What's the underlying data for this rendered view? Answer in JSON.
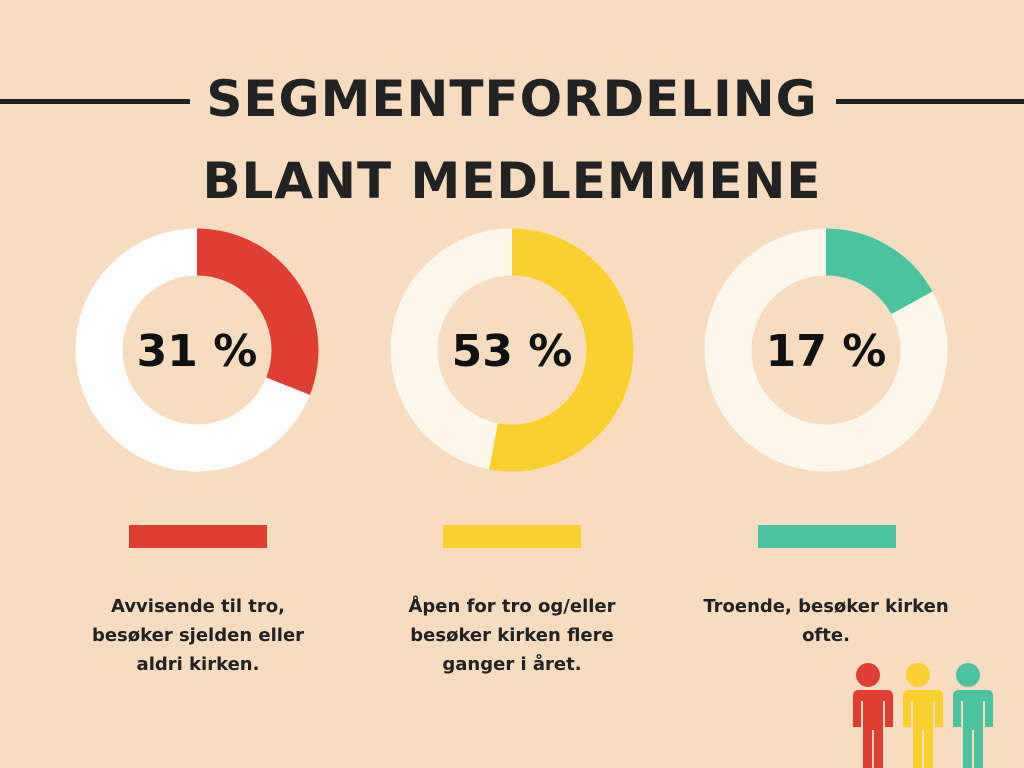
{
  "title": {
    "line1": "SEGMENTFORDELING",
    "line2": "BLANT MEDLEMMENE"
  },
  "chart_data": {
    "type": "pie",
    "title": "SEGMENTFORDELING BLANT MEDLEMMENE",
    "series": [
      {
        "label": "31 %",
        "value": 31,
        "color": "#E03E33",
        "remainder_color": "#FFFFFF",
        "description": "Avvisende til tro, besøker sjelden eller aldri kirken."
      },
      {
        "label": "53 %",
        "value": 53,
        "color": "#F9D12E",
        "remainder_color": "#FEF8EC",
        "description": "Åpen for tro og/eller besøker kirken flere ganger i året."
      },
      {
        "label": "17 %",
        "value": 17,
        "color": "#4CC39F",
        "remainder_color": "#FEF8EC",
        "description": "Troende, besøker kirken ofte."
      }
    ]
  },
  "descriptions": [
    {
      "lines": [
        "Avvisende til tro,",
        "besøker sjelden eller",
        "aldri kirken."
      ]
    },
    {
      "lines": [
        "Åpen for tro og/eller",
        "besøker kirken flere",
        "ganger i året."
      ]
    },
    {
      "lines": [
        "Troende, besøker kirken",
        "ofte."
      ]
    }
  ],
  "icons": [
    "person-red-icon",
    "person-yellow-icon",
    "person-green-icon"
  ],
  "colors": {
    "background": "#F7DCBF",
    "text": "#222222"
  }
}
